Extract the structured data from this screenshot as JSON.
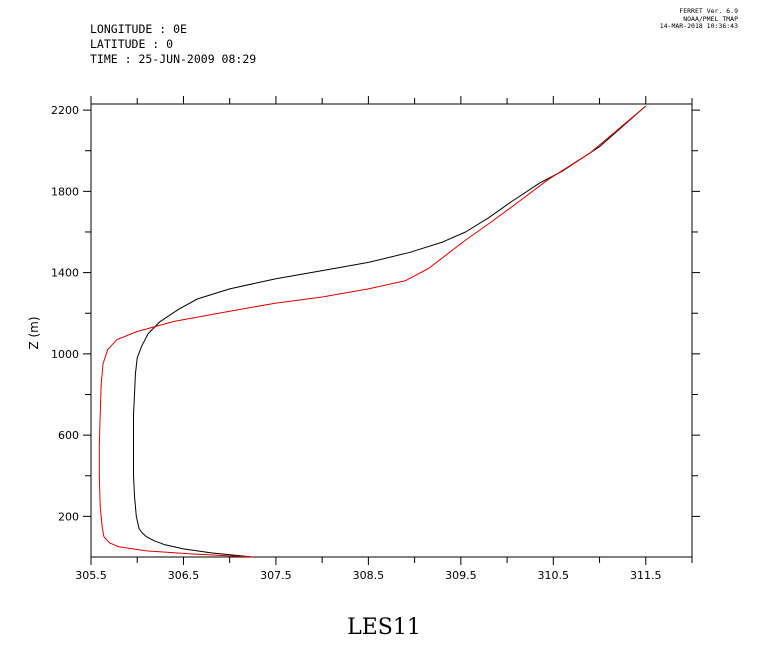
{
  "header": {
    "longitude": "LONGITUDE : 0E",
    "latitude": "LATITUDE : 0",
    "time": "TIME : 25-JUN-2009 08:29"
  },
  "ferret": {
    "line1": "FERRET Ver. 6.9",
    "line2": "NOAA/PMEL TMAP",
    "line3": "14-MAR-2018 10:36:43"
  },
  "caption": "LES11",
  "chart_data": {
    "type": "line",
    "title": "",
    "xlabel": "",
    "ylabel": "Z (m)",
    "xlim": [
      305.5,
      312.0
    ],
    "ylim": [
      0,
      2230
    ],
    "x_ticks": [
      305.5,
      306.5,
      307.5,
      308.5,
      309.5,
      310.5,
      311.5
    ],
    "x_tick_labels": [
      "305.5",
      "306.5",
      "307.5",
      "308.5",
      "309.5",
      "310.5",
      "311.5"
    ],
    "y_ticks": [
      200,
      600,
      1000,
      1400,
      1800,
      2200
    ],
    "y_tick_labels": [
      "200",
      "600",
      "1000",
      "1400",
      "1800",
      "2200"
    ],
    "grid": false,
    "series": [
      {
        "color": "#000000",
        "points": [
          [
            307.25,
            0
          ],
          [
            306.8,
            20
          ],
          [
            306.5,
            40
          ],
          [
            306.3,
            60
          ],
          [
            306.18,
            80
          ],
          [
            306.1,
            100
          ],
          [
            306.05,
            120
          ],
          [
            306.02,
            140
          ],
          [
            305.99,
            200
          ],
          [
            305.97,
            300
          ],
          [
            305.96,
            400
          ],
          [
            305.96,
            500
          ],
          [
            305.96,
            600
          ],
          [
            305.96,
            700
          ],
          [
            305.97,
            800
          ],
          [
            305.98,
            900
          ],
          [
            306.0,
            980
          ],
          [
            306.05,
            1040
          ],
          [
            306.12,
            1100
          ],
          [
            306.25,
            1160
          ],
          [
            306.45,
            1220
          ],
          [
            306.65,
            1270
          ],
          [
            307.0,
            1320
          ],
          [
            307.5,
            1370
          ],
          [
            308.0,
            1410
          ],
          [
            308.5,
            1450
          ],
          [
            308.95,
            1500
          ],
          [
            309.3,
            1550
          ],
          [
            309.55,
            1600
          ],
          [
            309.8,
            1670
          ],
          [
            310.05,
            1750
          ],
          [
            310.35,
            1840
          ],
          [
            310.6,
            1900
          ],
          [
            311.0,
            2020
          ],
          [
            311.5,
            2220
          ]
        ]
      },
      {
        "color": "#dd0000",
        "points": [
          [
            307.25,
            0
          ],
          [
            306.6,
            15
          ],
          [
            306.1,
            30
          ],
          [
            305.8,
            50
          ],
          [
            305.7,
            70
          ],
          [
            305.64,
            100
          ],
          [
            305.62,
            150
          ],
          [
            305.6,
            250
          ],
          [
            305.59,
            400
          ],
          [
            305.59,
            550
          ],
          [
            305.6,
            700
          ],
          [
            305.61,
            850
          ],
          [
            305.63,
            950
          ],
          [
            305.68,
            1020
          ],
          [
            305.78,
            1070
          ],
          [
            306.0,
            1110
          ],
          [
            306.4,
            1160
          ],
          [
            307.0,
            1210
          ],
          [
            307.5,
            1250
          ],
          [
            308.0,
            1280
          ],
          [
            308.5,
            1320
          ],
          [
            308.9,
            1360
          ],
          [
            309.15,
            1420
          ],
          [
            309.35,
            1490
          ],
          [
            309.55,
            1560
          ],
          [
            309.8,
            1640
          ],
          [
            310.1,
            1740
          ],
          [
            310.45,
            1860
          ],
          [
            310.9,
            1990
          ],
          [
            311.5,
            2220
          ]
        ]
      }
    ]
  }
}
